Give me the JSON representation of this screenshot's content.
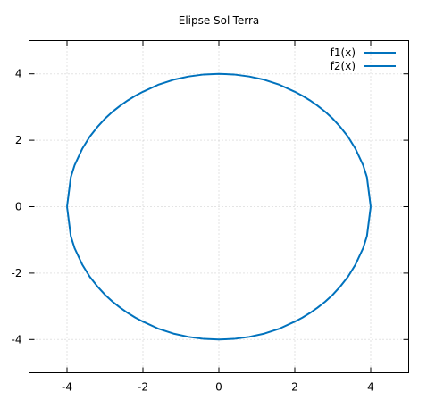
{
  "chart_data": {
    "type": "line",
    "title": "Elipse Sol-Terra",
    "xlabel": "",
    "ylabel": "",
    "xlim": [
      -5,
      5
    ],
    "ylim": [
      -5,
      5
    ],
    "xticks": [
      -4,
      -2,
      0,
      2,
      4
    ],
    "yticks": [
      -4,
      -2,
      0,
      2,
      4
    ],
    "grid": true,
    "legend_position": "top-right",
    "x": [
      -4,
      -3.9,
      -3.8,
      -3.6,
      -3.4,
      -3.2,
      -3,
      -2.8,
      -2.6,
      -2.4,
      -2.2,
      -2,
      -1.6,
      -1.2,
      -0.8,
      -0.4,
      0,
      0.4,
      0.8,
      1.2,
      1.6,
      2,
      2.2,
      2.4,
      2.6,
      2.8,
      3,
      3.2,
      3.4,
      3.6,
      3.8,
      3.9,
      4
    ],
    "series": [
      {
        "name": "f1(x)",
        "color": "#0072bd",
        "values": [
          0,
          0.89,
          1.25,
          1.74,
          2.11,
          2.4,
          2.65,
          2.86,
          3.04,
          3.2,
          3.34,
          3.46,
          3.67,
          3.82,
          3.92,
          3.98,
          4,
          3.98,
          3.92,
          3.82,
          3.67,
          3.46,
          3.34,
          3.2,
          3.04,
          2.86,
          2.65,
          2.4,
          2.11,
          1.74,
          1.25,
          0.89,
          0
        ]
      },
      {
        "name": "f2(x)",
        "color": "#0072bd",
        "values": [
          0,
          -0.89,
          -1.25,
          -1.74,
          -2.11,
          -2.4,
          -2.65,
          -2.86,
          -3.04,
          -3.2,
          -3.34,
          -3.46,
          -3.67,
          -3.82,
          -3.92,
          -3.98,
          -4,
          -3.98,
          -3.92,
          -3.82,
          -3.67,
          -3.46,
          -3.34,
          -3.2,
          -3.04,
          -2.86,
          -2.65,
          -2.4,
          -2.11,
          -1.74,
          -1.25,
          -0.89,
          0
        ]
      }
    ]
  }
}
